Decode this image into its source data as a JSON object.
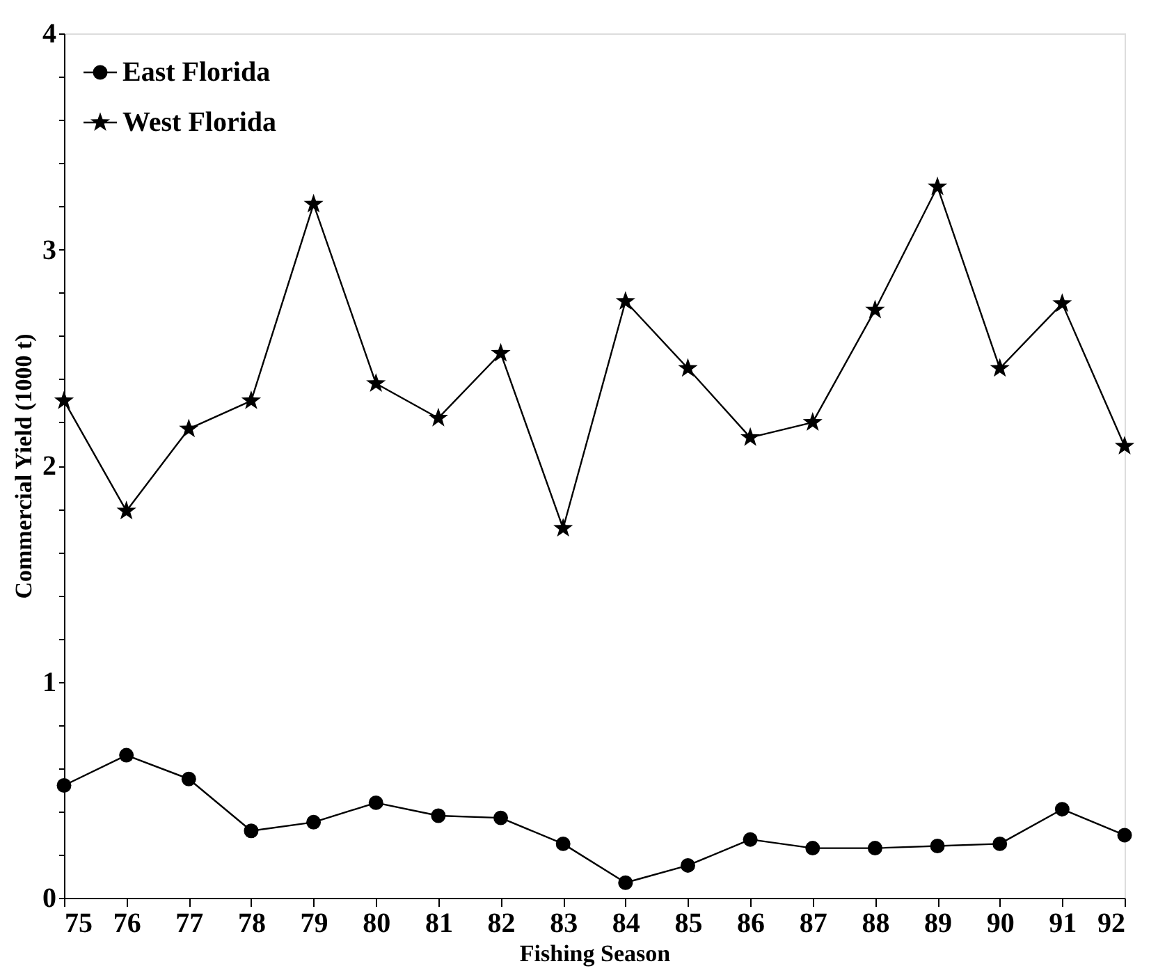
{
  "chart_data": {
    "type": "line",
    "xlabel": "Fishing Season",
    "ylabel": "Commercial Yield (1000 t)",
    "x": [
      75,
      76,
      77,
      78,
      79,
      80,
      81,
      82,
      83,
      84,
      85,
      86,
      87,
      88,
      89,
      90,
      91,
      92
    ],
    "xlim": [
      75,
      92
    ],
    "xticks": [
      75,
      76,
      77,
      78,
      79,
      80,
      81,
      82,
      83,
      84,
      85,
      86,
      87,
      88,
      89,
      90,
      91,
      92
    ],
    "ylim": [
      0,
      4
    ],
    "yticks": [
      0,
      {
        "value": 0.2,
        "label": null
      },
      {
        "value": 0.4,
        "label": null
      },
      {
        "value": 0.6,
        "label": null
      },
      {
        "value": 0.8,
        "label": null
      },
      1,
      {
        "value": 1.2,
        "label": null
      },
      {
        "value": 1.4,
        "label": null
      },
      {
        "value": 1.6,
        "label": null
      },
      {
        "value": 1.8,
        "label": null
      },
      2,
      {
        "value": 2.2,
        "label": null
      },
      {
        "value": 2.4,
        "label": null
      },
      {
        "value": 2.6,
        "label": null
      },
      {
        "value": 2.8,
        "label": null
      },
      3,
      {
        "value": 3.2,
        "label": null
      },
      {
        "value": 3.4,
        "label": null
      },
      {
        "value": 3.6,
        "label": null
      },
      {
        "value": 3.8,
        "label": null
      },
      4
    ],
    "grid": false,
    "legend": "top left",
    "line_style": "solid",
    "series": [
      {
        "name": "East Florida",
        "color": "#000000",
        "marker": "circle",
        "values": [
          0.52,
          0.66,
          0.55,
          0.31,
          0.35,
          0.44,
          0.38,
          0.37,
          0.25,
          0.07,
          0.15,
          0.27,
          0.23,
          0.23,
          0.24,
          0.25,
          0.41,
          0.29
        ]
      },
      {
        "name": "West Florida",
        "color": "#000000",
        "marker": "star",
        "values": [
          2.3,
          1.79,
          2.17,
          2.3,
          3.21,
          2.38,
          2.22,
          2.52,
          1.71,
          2.76,
          2.45,
          2.13,
          2.2,
          2.72,
          3.29,
          2.45,
          2.75,
          2.09
        ]
      }
    ]
  }
}
